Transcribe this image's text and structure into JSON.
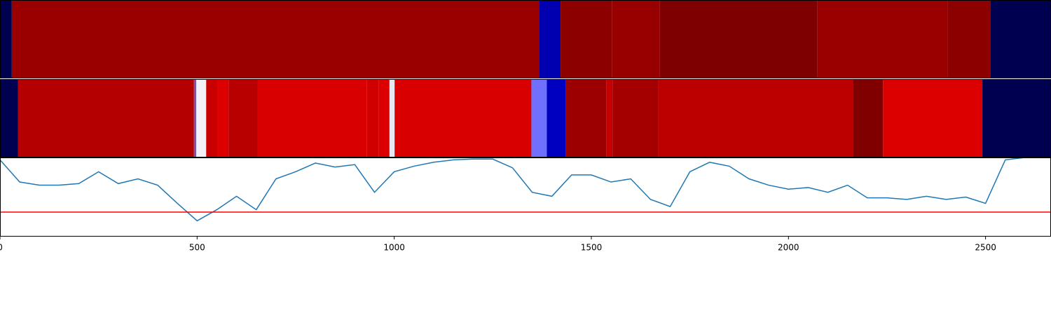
{
  "chart_data": {
    "type": "line",
    "xlim": [
      0,
      2666
    ],
    "xticks": [
      0,
      500,
      1000,
      1500,
      2000,
      2500
    ],
    "ylim": [
      0,
      1
    ],
    "strips": [
      {
        "segments": [
          {
            "start": 0,
            "end": 30,
            "color": "#000050"
          },
          {
            "start": 30,
            "end": 1367,
            "color": "#9a0000"
          },
          {
            "start": 1367,
            "end": 1422,
            "color": "#0000b0"
          },
          {
            "start": 1422,
            "end": 1552,
            "color": "#8c0000"
          },
          {
            "start": 1552,
            "end": 1673,
            "color": "#980000"
          },
          {
            "start": 1673,
            "end": 2073,
            "color": "#7e0000"
          },
          {
            "start": 2073,
            "end": 2404,
            "color": "#9a0000"
          },
          {
            "start": 2404,
            "end": 2512,
            "color": "#8c0000"
          },
          {
            "start": 2512,
            "end": 2666,
            "color": "#000050"
          }
        ]
      },
      {
        "segments": [
          {
            "start": 0,
            "end": 46,
            "color": "#000050"
          },
          {
            "start": 46,
            "end": 492,
            "color": "#b40000"
          },
          {
            "start": 492,
            "end": 498,
            "color": "#8050b0"
          },
          {
            "start": 498,
            "end": 523,
            "color": "#f4f0f8"
          },
          {
            "start": 523,
            "end": 551,
            "color": "#c80000"
          },
          {
            "start": 551,
            "end": 580,
            "color": "#dc0000"
          },
          {
            "start": 580,
            "end": 654,
            "color": "#b80000"
          },
          {
            "start": 654,
            "end": 930,
            "color": "#d80000"
          },
          {
            "start": 930,
            "end": 960,
            "color": "#d00000"
          },
          {
            "start": 960,
            "end": 988,
            "color": "#dc0000"
          },
          {
            "start": 988,
            "end": 1001,
            "color": "#e8e8f4"
          },
          {
            "start": 1001,
            "end": 1348,
            "color": "#d80000"
          },
          {
            "start": 1348,
            "end": 1387,
            "color": "#7070ff"
          },
          {
            "start": 1387,
            "end": 1435,
            "color": "#0000c0"
          },
          {
            "start": 1435,
            "end": 1538,
            "color": "#9c0000"
          },
          {
            "start": 1538,
            "end": 1554,
            "color": "#c40000"
          },
          {
            "start": 1554,
            "end": 1669,
            "color": "#a40000"
          },
          {
            "start": 1669,
            "end": 2164,
            "color": "#bc0000"
          },
          {
            "start": 2164,
            "end": 2240,
            "color": "#800000"
          },
          {
            "start": 2240,
            "end": 2492,
            "color": "#dc0000"
          },
          {
            "start": 2492,
            "end": 2666,
            "color": "#000050"
          }
        ]
      }
    ],
    "x": [
      0,
      50,
      100,
      150,
      200,
      250,
      300,
      350,
      400,
      450,
      500,
      550,
      600,
      650,
      700,
      750,
      800,
      850,
      900,
      950,
      1000,
      1050,
      1100,
      1150,
      1200,
      1250,
      1300,
      1350,
      1400,
      1450,
      1500,
      1550,
      1600,
      1650,
      1700,
      1750,
      1800,
      1850,
      1900,
      1950,
      2000,
      2050,
      2100,
      2150,
      2200,
      2250,
      2300,
      2350,
      2400,
      2450,
      2500,
      2550,
      2600,
      2650
    ],
    "values": [
      0.97,
      0.69,
      0.65,
      0.65,
      0.67,
      0.82,
      0.67,
      0.73,
      0.65,
      0.42,
      0.2,
      0.34,
      0.51,
      0.34,
      0.73,
      0.82,
      0.93,
      0.88,
      0.91,
      0.56,
      0.82,
      0.89,
      0.94,
      0.97,
      0.98,
      0.98,
      0.87,
      0.56,
      0.51,
      0.78,
      0.78,
      0.69,
      0.73,
      0.47,
      0.38,
      0.82,
      0.94,
      0.89,
      0.73,
      0.65,
      0.6,
      0.62,
      0.56,
      0.65,
      0.49,
      0.49,
      0.47,
      0.51,
      0.47,
      0.5,
      0.42,
      0.97,
      1.0,
      1.0
    ],
    "color": "#1f77b4",
    "threshold": 0.31,
    "threshold_color": "#ff0000"
  }
}
